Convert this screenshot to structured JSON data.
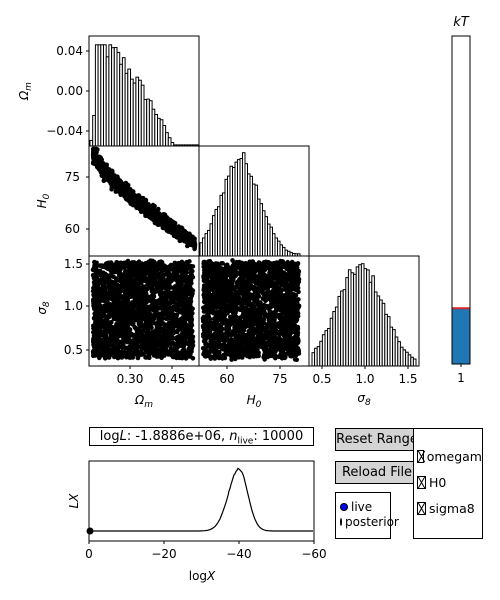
{
  "corner": {
    "params": [
      "Ω_m",
      "H_0",
      "σ_8"
    ],
    "ylabels": {
      "omegam": "Ωm",
      "h0": "H0",
      "sigma8": "σ8"
    },
    "xlabels": {
      "omegam": "Ωm",
      "h0": "H0",
      "sigma8": "σ8"
    },
    "omegam_yticks": [
      "0.04",
      "0.00",
      "−0.04"
    ],
    "h0_yticks": [
      "75",
      "60"
    ],
    "sigma8_yticks": [
      "1.5",
      "1.0",
      "0.5"
    ],
    "omegam_xticks": [
      "0.30",
      "0.45"
    ],
    "h0_xticks": [
      "60",
      "75"
    ],
    "sigma8_xticks": [
      "0.5",
      "1.0",
      "1.5"
    ]
  },
  "temperature": {
    "title": "kT",
    "tick": "1",
    "fill_fraction": 0.17,
    "bar_color": "#1f77b4",
    "line_color": "#d62728"
  },
  "status": {
    "text_prefix": "log",
    "text_mid": ": -1.8886e+06, ",
    "n_sub": "live",
    "n_value": ": 10000",
    "L": "L",
    "n": "n"
  },
  "buttons": {
    "reset_range": "Reset Range",
    "reload_file": "Reload File"
  },
  "radio": {
    "options": [
      "live",
      "posterior"
    ],
    "selected": "live",
    "selected_color": "#0000ff"
  },
  "checks": {
    "items": [
      "omegam",
      "H0",
      "sigma8"
    ]
  },
  "lx_plot": {
    "ylabel": "LX",
    "xlabel": "logX",
    "xticks": [
      "0",
      "−20",
      "−40",
      "−60"
    ]
  }
}
